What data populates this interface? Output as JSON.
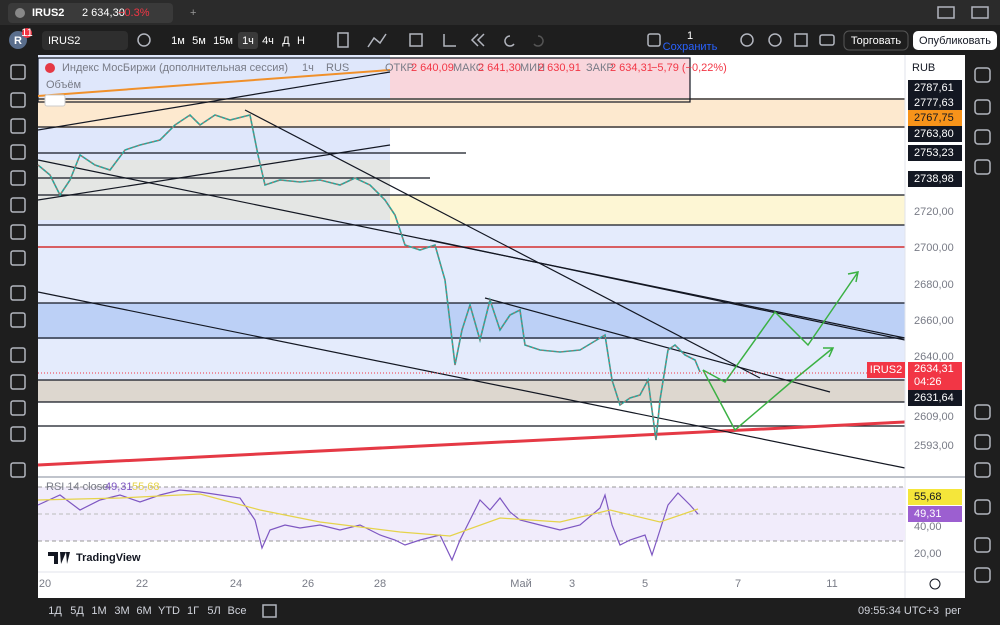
{
  "tab": {
    "symbol": "IRUS2",
    "price": "2 634,30",
    "change": "−0.3%"
  },
  "toolbar": {
    "symbol": "IRUS2",
    "intervals": [
      "1м",
      "5м",
      "15м",
      "1ч",
      "4ч",
      "Д",
      "Н"
    ],
    "layout_count": "1",
    "save": "Сохранить",
    "trade": "Торговать",
    "publish": "Опубликовать"
  },
  "legend": {
    "name": "Индекс МосБиржи (дополнительная сессия)",
    "interval": "1ч",
    "exchange": "RUS",
    "open_label": "ОТКР",
    "open": "2 640,09",
    "high_label": "МАКС",
    "high": "2 641,30",
    "low_label": "МИН",
    "low": "2 630,91",
    "close_label": "ЗАКР",
    "close": "2 634,31",
    "change": "−5,79 (−0,22%)",
    "volume": "Объём"
  },
  "price_axis": {
    "currency": "RUB",
    "levels": [
      "2787,61",
      "2777,63",
      "2767,75",
      "2763,80",
      "2753,23",
      "2738,98",
      "2631,64"
    ],
    "ticks": [
      "2720,00",
      "2700,00",
      "2680,00",
      "2660,00",
      "2640,00",
      "2609,00",
      "2593,00"
    ],
    "symbol_tag": "IRUS2",
    "last_price": "2634,31",
    "countdown": "04:26"
  },
  "rsi": {
    "title": "RSI 14 close",
    "value": "49,31",
    "ma": "55,68",
    "axis_ma": "55,68",
    "axis_value": "49,31",
    "ticks": [
      "40,00",
      "20,00"
    ]
  },
  "logo": "TradingView",
  "time_axis": [
    "20",
    "22",
    "24",
    "26",
    "28",
    "Май",
    "3",
    "5",
    "7",
    "11"
  ],
  "bottom_bar": {
    "ranges": [
      "1Д",
      "5Д",
      "1М",
      "3М",
      "6М",
      "YTD",
      "1Г",
      "5Л",
      "Все"
    ],
    "clock": "09:55:34 UTC+3",
    "session": "рег"
  }
}
